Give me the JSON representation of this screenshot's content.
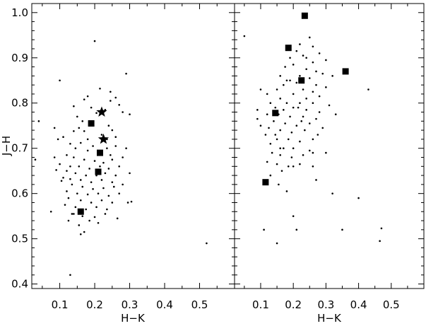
{
  "chart_data": [
    {
      "type": "scatter",
      "panel": "left",
      "xlabel": "H−K",
      "ylabel": "J−H",
      "xlim": [
        0.02,
        0.6
      ],
      "ylim": [
        0.39,
        1.02
      ],
      "xticks": [
        0.1,
        0.2,
        0.3,
        0.4,
        0.5
      ],
      "xtick_labels": [
        "0.1",
        "0.2",
        "0.3",
        "0.4",
        "0.5"
      ],
      "yticks": [
        0.4,
        0.5,
        0.6,
        0.7,
        0.8,
        0.9,
        1.0
      ],
      "ytick_labels": [
        "0.4",
        "0.5",
        "0.6",
        "0.7",
        "0.8",
        "0.9",
        "1.0"
      ],
      "grid": false,
      "series": [
        {
          "marker": "dot",
          "points": [
            [
              0.2,
              0.937
            ],
            [
              0.1,
              0.85
            ],
            [
              0.29,
              0.865
            ],
            [
              0.215,
              0.832
            ],
            [
              0.245,
              0.825
            ],
            [
              0.26,
              0.812
            ],
            [
              0.18,
              0.815
            ],
            [
              0.17,
              0.808
            ],
            [
              0.245,
              0.805
            ],
            [
              0.27,
              0.796
            ],
            [
              0.14,
              0.793
            ],
            [
              0.19,
              0.79
            ],
            [
              0.23,
              0.785
            ],
            [
              0.205,
              0.778
            ],
            [
              0.28,
              0.78
            ],
            [
              0.3,
              0.775
            ],
            [
              0.04,
              0.76
            ],
            [
              0.085,
              0.745
            ],
            [
              0.15,
              0.77
            ],
            [
              0.165,
              0.76
            ],
            [
              0.195,
              0.755
            ],
            [
              0.24,
              0.75
            ],
            [
              0.25,
              0.74
            ],
            [
              0.17,
              0.738
            ],
            [
              0.22,
              0.73
            ],
            [
              0.26,
              0.725
            ],
            [
              0.18,
              0.72
            ],
            [
              0.095,
              0.72
            ],
            [
              0.13,
              0.71
            ],
            [
              0.16,
              0.712
            ],
            [
              0.195,
              0.705
            ],
            [
              0.235,
              0.7
            ],
            [
              0.26,
              0.705
            ],
            [
              0.145,
              0.7
            ],
            [
              0.18,
              0.695
            ],
            [
              0.21,
              0.69
            ],
            [
              0.245,
              0.685
            ],
            [
              0.12,
              0.685
            ],
            [
              0.14,
              0.68
            ],
            [
              0.17,
              0.675
            ],
            [
              0.2,
              0.672
            ],
            [
              0.225,
              0.668
            ],
            [
              0.25,
              0.675
            ],
            [
              0.28,
              0.68
            ],
            [
              0.03,
              0.675
            ],
            [
              0.1,
              0.665
            ],
            [
              0.13,
              0.66
            ],
            [
              0.155,
              0.66
            ],
            [
              0.185,
              0.655
            ],
            [
              0.215,
              0.66
            ],
            [
              0.24,
              0.655
            ],
            [
              0.27,
              0.66
            ],
            [
              0.12,
              0.65
            ],
            [
              0.145,
              0.645
            ],
            [
              0.175,
              0.64
            ],
            [
              0.205,
              0.64
            ],
            [
              0.23,
              0.645
            ],
            [
              0.26,
              0.64
            ],
            [
              0.3,
              0.645
            ],
            [
              0.11,
              0.635
            ],
            [
              0.13,
              0.632
            ],
            [
              0.16,
              0.63
            ],
            [
              0.19,
              0.625
            ],
            [
              0.22,
              0.63
            ],
            [
              0.25,
              0.625
            ],
            [
              0.135,
              0.62
            ],
            [
              0.165,
              0.615
            ],
            [
              0.195,
              0.61
            ],
            [
              0.225,
              0.612
            ],
            [
              0.255,
              0.615
            ],
            [
              0.12,
              0.605
            ],
            [
              0.15,
              0.6
            ],
            [
              0.18,
              0.598
            ],
            [
              0.21,
              0.6
            ],
            [
              0.24,
              0.595
            ],
            [
              0.125,
              0.59
            ],
            [
              0.16,
              0.585
            ],
            [
              0.19,
              0.58
            ],
            [
              0.22,
              0.585
            ],
            [
              0.25,
              0.58
            ],
            [
              0.295,
              0.58
            ],
            [
              0.305,
              0.582
            ],
            [
              0.115,
              0.575
            ],
            [
              0.145,
              0.57
            ],
            [
              0.175,
              0.565
            ],
            [
              0.205,
              0.57
            ],
            [
              0.235,
              0.565
            ],
            [
              0.135,
              0.555
            ],
            [
              0.165,
              0.55
            ],
            [
              0.2,
              0.548
            ],
            [
              0.23,
              0.555
            ],
            [
              0.075,
              0.56
            ],
            [
              0.125,
              0.54
            ],
            [
              0.155,
              0.53
            ],
            [
              0.185,
              0.54
            ],
            [
              0.17,
              0.515
            ],
            [
              0.265,
              0.545
            ],
            [
              0.16,
              0.51
            ],
            [
              0.52,
              0.49
            ],
            [
              0.13,
              0.42
            ],
            [
              0.14,
              0.738
            ],
            [
              0.11,
              0.725
            ],
            [
              0.09,
              0.652
            ],
            [
              0.105,
              0.628
            ],
            [
              0.14,
              0.555
            ],
            [
              0.21,
              0.535
            ],
            [
              0.27,
              0.6
            ],
            [
              0.235,
              0.72
            ],
            [
              0.155,
              0.745
            ],
            [
              0.29,
              0.7
            ],
            [
              0.28,
              0.62
            ],
            [
              0.085,
              0.68
            ]
          ]
        },
        {
          "marker": "square",
          "points": [
            [
              0.19,
              0.755
            ],
            [
              0.215,
              0.69
            ],
            [
              0.21,
              0.648
            ],
            [
              0.16,
              0.56
            ]
          ]
        },
        {
          "marker": "star",
          "points": [
            [
              0.22,
              0.78
            ],
            [
              0.225,
              0.72
            ]
          ]
        }
      ]
    },
    {
      "type": "scatter",
      "panel": "right",
      "xlabel": "H−K",
      "ylabel": "",
      "xlim": [
        0.02,
        0.6
      ],
      "ylim": [
        0.39,
        1.02
      ],
      "xticks": [
        0.1,
        0.2,
        0.3,
        0.4,
        0.5
      ],
      "xtick_labels": [
        "0.1",
        "0.2",
        "0.3",
        "0.4",
        "0.5"
      ],
      "yticks": [
        0.4,
        0.5,
        0.6,
        0.7,
        0.8,
        0.9,
        1.0
      ],
      "ytick_labels": [],
      "grid": false,
      "series": [
        {
          "marker": "dot",
          "points": [
            [
              0.05,
              0.948
            ],
            [
              0.25,
              0.945
            ],
            [
              0.22,
              0.93
            ],
            [
              0.26,
              0.925
            ],
            [
              0.21,
              0.915
            ],
            [
              0.28,
              0.91
            ],
            [
              0.23,
              0.905
            ],
            [
              0.19,
              0.9
            ],
            [
              0.3,
              0.895
            ],
            [
              0.26,
              0.89
            ],
            [
              0.2,
              0.885
            ],
            [
              0.175,
              0.88
            ],
            [
              0.24,
              0.875
            ],
            [
              0.27,
              0.87
            ],
            [
              0.22,
              0.86
            ],
            [
              0.29,
              0.865
            ],
            [
              0.32,
              0.86
            ],
            [
              0.16,
              0.86
            ],
            [
              0.25,
              0.855
            ],
            [
              0.19,
              0.85
            ],
            [
              0.21,
              0.845
            ],
            [
              0.27,
              0.84
            ],
            [
              0.3,
              0.835
            ],
            [
              0.17,
              0.84
            ],
            [
              0.15,
              0.83
            ],
            [
              0.23,
              0.83
            ],
            [
              0.26,
              0.825
            ],
            [
              0.43,
              0.83
            ],
            [
              0.1,
              0.83
            ],
            [
              0.12,
              0.82
            ],
            [
              0.2,
              0.82
            ],
            [
              0.28,
              0.815
            ],
            [
              0.24,
              0.81
            ],
            [
              0.16,
              0.81
            ],
            [
              0.13,
              0.8
            ],
            [
              0.18,
              0.8
            ],
            [
              0.22,
              0.8
            ],
            [
              0.26,
              0.8
            ],
            [
              0.31,
              0.795
            ],
            [
              0.145,
              0.79
            ],
            [
              0.2,
              0.79
            ],
            [
              0.24,
              0.785
            ],
            [
              0.28,
              0.78
            ],
            [
              0.17,
              0.785
            ],
            [
              0.09,
              0.785
            ],
            [
              0.12,
              0.775
            ],
            [
              0.155,
              0.775
            ],
            [
              0.19,
              0.77
            ],
            [
              0.23,
              0.77
            ],
            [
              0.27,
              0.765
            ],
            [
              0.09,
              0.765
            ],
            [
              0.33,
              0.775
            ],
            [
              0.14,
              0.76
            ],
            [
              0.175,
              0.755
            ],
            [
              0.21,
              0.75
            ],
            [
              0.25,
              0.755
            ],
            [
              0.125,
              0.745
            ],
            [
              0.16,
              0.74
            ],
            [
              0.195,
              0.735
            ],
            [
              0.235,
              0.74
            ],
            [
              0.275,
              0.73
            ],
            [
              0.115,
              0.73
            ],
            [
              0.15,
              0.72
            ],
            [
              0.185,
              0.72
            ],
            [
              0.22,
              0.715
            ],
            [
              0.26,
              0.72
            ],
            [
              0.13,
              0.71
            ],
            [
              0.17,
              0.7
            ],
            [
              0.2,
              0.7
            ],
            [
              0.25,
              0.695
            ],
            [
              0.135,
              0.69
            ],
            [
              0.16,
              0.685
            ],
            [
              0.195,
              0.68
            ],
            [
              0.23,
              0.685
            ],
            [
              0.3,
              0.69
            ],
            [
              0.12,
              0.67
            ],
            [
              0.15,
              0.665
            ],
            [
              0.185,
              0.66
            ],
            [
              0.22,
              0.665
            ],
            [
              0.26,
              0.66
            ],
            [
              0.165,
              0.65
            ],
            [
              0.2,
              0.66
            ],
            [
              0.13,
              0.64
            ],
            [
              0.155,
              0.62
            ],
            [
              0.18,
              0.605
            ],
            [
              0.27,
              0.63
            ],
            [
              0.32,
              0.6
            ],
            [
              0.4,
              0.59
            ],
            [
              0.2,
              0.55
            ],
            [
              0.11,
              0.52
            ],
            [
              0.21,
              0.52
            ],
            [
              0.35,
              0.52
            ],
            [
              0.47,
              0.523
            ],
            [
              0.15,
              0.49
            ],
            [
              0.465,
              0.495
            ],
            [
              0.1,
              0.75
            ],
            [
              0.145,
              0.73
            ],
            [
              0.16,
              0.7
            ],
            [
              0.26,
              0.69
            ],
            [
              0.29,
              0.745
            ],
            [
              0.215,
              0.79
            ],
            [
              0.225,
              0.76
            ],
            [
              0.18,
              0.85
            ],
            [
              0.24,
              0.9
            ]
          ]
        },
        {
          "marker": "square",
          "points": [
            [
              0.235,
              0.993
            ],
            [
              0.185,
              0.922
            ],
            [
              0.225,
              0.85
            ],
            [
              0.36,
              0.87
            ],
            [
              0.145,
              0.778
            ],
            [
              0.115,
              0.625
            ]
          ]
        }
      ]
    }
  ]
}
